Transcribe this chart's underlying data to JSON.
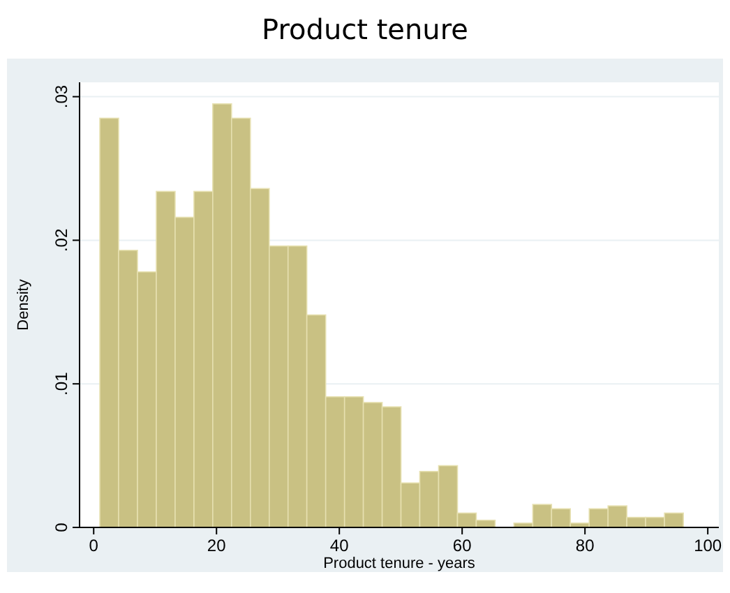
{
  "chart_data": {
    "type": "histogram",
    "title": "Product tenure",
    "xlabel": "Product tenure - years",
    "ylabel": "Density",
    "bins": [
      1,
      4.06,
      7.13,
      10.2,
      13.26,
      16.33,
      19.39,
      22.45,
      25.52,
      28.59,
      31.65,
      34.71,
      37.78,
      40.85,
      43.91,
      46.98,
      50.04,
      53.1,
      56.17,
      59.24,
      62.3,
      65.37,
      68.43,
      71.5,
      74.56,
      77.62,
      80.69,
      83.76,
      86.82,
      89.88,
      92.95,
      96.02
    ],
    "values": [
      0.0285,
      0.0193,
      0.0178,
      0.0234,
      0.0216,
      0.0234,
      0.0295,
      0.0285,
      0.0236,
      0.0196,
      0.0196,
      0.0148,
      0.0091,
      0.0091,
      0.0087,
      0.0084,
      0.0031,
      0.0039,
      0.0043,
      0.001,
      0.0005,
      0,
      0.0003,
      0.0016,
      0.0013,
      0.0003,
      0.0013,
      0.0015,
      0.0007,
      0.0007,
      0.001
    ],
    "color": "#c9c183",
    "xlim": [
      -2.3,
      101.8
    ],
    "xticks": [
      0,
      20,
      40,
      60,
      80,
      100
    ],
    "ylim": [
      0,
      0.031
    ],
    "yticks": [
      {
        "value": 0,
        "label": "0"
      },
      {
        "value": 0.01,
        "label": ".01"
      },
      {
        "value": 0.02,
        "label": ".02"
      },
      {
        "value": 0.03,
        "label": ".03"
      }
    ],
    "grid": "y"
  }
}
